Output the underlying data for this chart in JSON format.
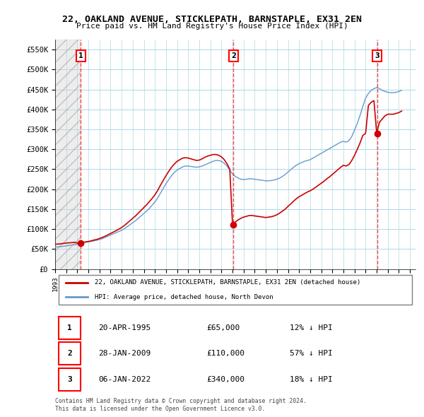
{
  "title": "22, OAKLAND AVENUE, STICKLEPATH, BARNSTAPLE, EX31 2EN",
  "subtitle": "Price paid vs. HM Land Registry's House Price Index (HPI)",
  "ylabel_ticks": [
    "£0",
    "£50K",
    "£100K",
    "£150K",
    "£200K",
    "£250K",
    "£300K",
    "£350K",
    "£400K",
    "£450K",
    "£500K",
    "£550K"
  ],
  "ylabel_values": [
    0,
    50000,
    100000,
    150000,
    200000,
    250000,
    300000,
    350000,
    400000,
    450000,
    500000,
    550000
  ],
  "xmin": 1993.0,
  "xmax": 2025.5,
  "ymin": 0,
  "ymax": 575000,
  "sale_dates": [
    1995.31,
    2009.08,
    2022.03
  ],
  "sale_prices": [
    65000,
    110000,
    340000
  ],
  "sale_labels": [
    "1",
    "2",
    "3"
  ],
  "sale_info": [
    {
      "num": "1",
      "date": "20-APR-1995",
      "price": "£65,000",
      "hpi": "12% ↓ HPI"
    },
    {
      "num": "2",
      "date": "28-JAN-2009",
      "price": "£110,000",
      "hpi": "57% ↓ HPI"
    },
    {
      "num": "3",
      "date": "06-JAN-2022",
      "price": "£340,000",
      "hpi": "18% ↓ HPI"
    }
  ],
  "legend_line1": "22, OAKLAND AVENUE, STICKLEPATH, BARNSTAPLE, EX31 2EN (detached house)",
  "legend_line2": "HPI: Average price, detached house, North Devon",
  "footer": "Contains HM Land Registry data © Crown copyright and database right 2024.\nThis data is licensed under the Open Government Licence v3.0.",
  "red_color": "#cc0000",
  "blue_color": "#6699cc",
  "hpi_x": [
    1993.0,
    1993.25,
    1993.5,
    1993.75,
    1994.0,
    1994.25,
    1994.5,
    1994.75,
    1995.0,
    1995.25,
    1995.5,
    1995.75,
    1996.0,
    1996.25,
    1996.5,
    1996.75,
    1997.0,
    1997.25,
    1997.5,
    1997.75,
    1998.0,
    1998.25,
    1998.5,
    1998.75,
    1999.0,
    1999.25,
    1999.5,
    1999.75,
    2000.0,
    2000.25,
    2000.5,
    2000.75,
    2001.0,
    2001.25,
    2001.5,
    2001.75,
    2002.0,
    2002.25,
    2002.5,
    2002.75,
    2003.0,
    2003.25,
    2003.5,
    2003.75,
    2004.0,
    2004.25,
    2004.5,
    2004.75,
    2005.0,
    2005.25,
    2005.5,
    2005.75,
    2006.0,
    2006.25,
    2006.5,
    2006.75,
    2007.0,
    2007.25,
    2007.5,
    2007.75,
    2008.0,
    2008.25,
    2008.5,
    2008.75,
    2009.0,
    2009.25,
    2009.5,
    2009.75,
    2010.0,
    2010.25,
    2010.5,
    2010.75,
    2011.0,
    2011.25,
    2011.5,
    2011.75,
    2012.0,
    2012.25,
    2012.5,
    2012.75,
    2013.0,
    2013.25,
    2013.5,
    2013.75,
    2014.0,
    2014.25,
    2014.5,
    2014.75,
    2015.0,
    2015.25,
    2015.5,
    2015.75,
    2016.0,
    2016.25,
    2016.5,
    2016.75,
    2017.0,
    2017.25,
    2017.5,
    2017.75,
    2018.0,
    2018.25,
    2018.5,
    2018.75,
    2019.0,
    2019.25,
    2019.5,
    2019.75,
    2020.0,
    2020.25,
    2020.5,
    2020.75,
    2021.0,
    2021.25,
    2021.5,
    2021.75,
    2022.0,
    2022.25,
    2022.5,
    2022.75,
    2023.0,
    2023.25,
    2023.5,
    2023.75,
    2024.0,
    2024.25
  ],
  "hpi_y": [
    55000,
    55500,
    56000,
    57000,
    58000,
    59000,
    60000,
    61000,
    62500,
    64000,
    65500,
    67000,
    68000,
    69000,
    70500,
    72000,
    74000,
    76000,
    79000,
    82000,
    85000,
    88000,
    91000,
    94000,
    97000,
    101000,
    106000,
    111000,
    116000,
    121000,
    127000,
    133000,
    139000,
    145000,
    152000,
    160000,
    168000,
    178000,
    190000,
    202000,
    214000,
    224000,
    234000,
    242000,
    248000,
    252000,
    256000,
    258000,
    258000,
    257000,
    256000,
    255000,
    256000,
    258000,
    261000,
    264000,
    267000,
    270000,
    272000,
    272000,
    270000,
    265000,
    258000,
    248000,
    238000,
    232000,
    228000,
    225000,
    224000,
    225000,
    226000,
    226000,
    225000,
    224000,
    223000,
    222000,
    221000,
    221000,
    222000,
    223000,
    225000,
    228000,
    232000,
    237000,
    243000,
    249000,
    255000,
    260000,
    264000,
    267000,
    270000,
    272000,
    274000,
    278000,
    282000,
    286000,
    290000,
    294000,
    298000,
    302000,
    306000,
    310000,
    314000,
    318000,
    320000,
    318000,
    322000,
    332000,
    348000,
    365000,
    385000,
    408000,
    428000,
    440000,
    448000,
    452000,
    455000,
    452000,
    448000,
    445000,
    443000,
    442000,
    442000,
    443000,
    445000,
    448000
  ],
  "red_x": [
    1993.0,
    1993.25,
    1993.5,
    1993.75,
    1994.0,
    1994.25,
    1994.5,
    1994.75,
    1995.0,
    1995.25,
    1995.5,
    1995.75,
    1996.0,
    1996.25,
    1996.5,
    1996.75,
    1997.0,
    1997.25,
    1997.5,
    1997.75,
    1998.0,
    1998.25,
    1998.5,
    1998.75,
    1999.0,
    1999.25,
    1999.5,
    1999.75,
    2000.0,
    2000.25,
    2000.5,
    2000.75,
    2001.0,
    2001.25,
    2001.5,
    2001.75,
    2002.0,
    2002.25,
    2002.5,
    2002.75,
    2003.0,
    2003.25,
    2003.5,
    2003.75,
    2004.0,
    2004.25,
    2004.5,
    2004.75,
    2005.0,
    2005.25,
    2005.5,
    2005.75,
    2006.0,
    2006.25,
    2006.5,
    2006.75,
    2007.0,
    2007.25,
    2007.5,
    2007.75,
    2008.0,
    2008.25,
    2008.5,
    2008.75,
    2009.0,
    2009.25,
    2009.5,
    2009.75,
    2010.0,
    2010.25,
    2010.5,
    2010.75,
    2011.0,
    2011.25,
    2011.5,
    2011.75,
    2012.0,
    2012.25,
    2012.5,
    2012.75,
    2013.0,
    2013.25,
    2013.5,
    2013.75,
    2014.0,
    2014.25,
    2014.5,
    2014.75,
    2015.0,
    2015.25,
    2015.5,
    2015.75,
    2016.0,
    2016.25,
    2016.5,
    2016.75,
    2017.0,
    2017.25,
    2017.5,
    2017.75,
    2018.0,
    2018.25,
    2018.5,
    2018.75,
    2019.0,
    2019.25,
    2019.5,
    2019.75,
    2020.0,
    2020.25,
    2020.5,
    2020.75,
    2021.0,
    2021.25,
    2021.5,
    2021.75,
    2022.0,
    2022.25,
    2022.5,
    2022.75,
    2023.0,
    2023.25,
    2023.5,
    2023.75,
    2024.0,
    2024.25
  ],
  "red_y": [
    62000,
    62500,
    63000,
    64000,
    65000,
    65500,
    66000,
    67000,
    65000,
    65500,
    66500,
    68000,
    69000,
    70500,
    72500,
    74000,
    76500,
    79000,
    82000,
    85500,
    89000,
    92500,
    96000,
    100000,
    104000,
    109000,
    115000,
    121000,
    127000,
    133000,
    140000,
    147000,
    154000,
    161000,
    169000,
    177000,
    186000,
    197000,
    210000,
    222000,
    234000,
    245000,
    255000,
    263000,
    270000,
    274000,
    278000,
    279000,
    278000,
    276000,
    274000,
    272000,
    273000,
    276000,
    280000,
    283000,
    285000,
    287000,
    287000,
    285000,
    281000,
    274000,
    264000,
    250000,
    110000,
    118000,
    123000,
    127000,
    130000,
    132000,
    134000,
    134000,
    133000,
    132000,
    131000,
    130000,
    129000,
    130000,
    131000,
    133000,
    136000,
    140000,
    145000,
    150000,
    157000,
    163000,
    170000,
    176000,
    181000,
    185000,
    189000,
    193000,
    196000,
    200000,
    205000,
    210000,
    215000,
    220000,
    226000,
    231000,
    237000,
    243000,
    249000,
    255000,
    260000,
    258000,
    262000,
    272000,
    285000,
    300000,
    316000,
    335000,
    340000,
    410000,
    418000,
    422000,
    340000,
    368000,
    376000,
    384000,
    388000,
    388000,
    388000,
    390000,
    392000,
    396000
  ]
}
